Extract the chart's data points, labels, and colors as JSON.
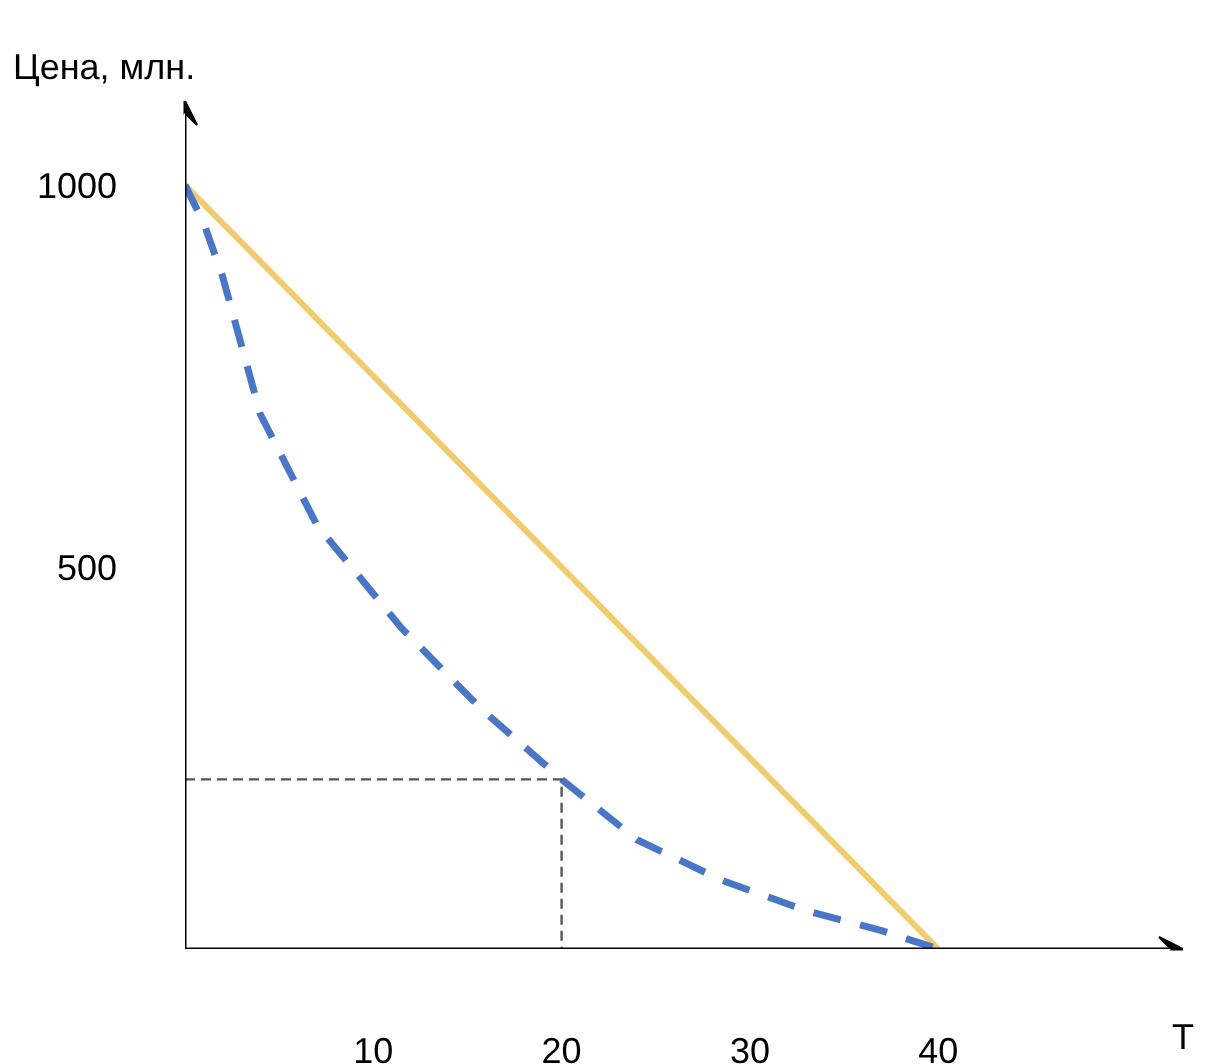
{
  "chart_data": {
    "type": "line",
    "xlabel": "T",
    "ylabel": "Цена, млн.",
    "xlim": [
      0,
      53
    ],
    "ylim": [
      0,
      1110
    ],
    "xticks": [
      10,
      20,
      30,
      40
    ],
    "yticks": [
      500,
      1000
    ],
    "grid": false,
    "series": [
      {
        "color": "#f1cb6e",
        "line_style": "solid",
        "x": [
          0,
          40
        ],
        "values": [
          1000,
          0
        ]
      },
      {
        "color": "#4a76c6",
        "line_style": "dashed",
        "x": [
          0,
          1,
          2,
          4,
          7,
          11.5,
          15.7,
          20,
          24,
          28.5,
          33,
          37,
          40
        ],
        "values": [
          1000,
          950,
          880,
          700,
          555,
          420,
          315,
          222,
          143,
          90,
          50,
          24,
          0
        ]
      },
      {
        "color": "#555555",
        "line_style": "dotted",
        "x": [
          0,
          20,
          20
        ],
        "values": [
          222,
          222,
          0
        ]
      }
    ]
  }
}
